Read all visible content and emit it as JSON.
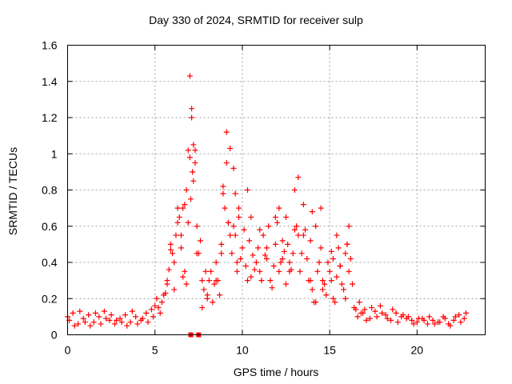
{
  "chart_data": {
    "type": "scatter",
    "title": "Day 330 of 2024, SRMTID for receiver sulp",
    "xlabel": "GPS time / hours",
    "ylabel": "SRMTID / TECUs",
    "xlim": [
      0,
      23.9
    ],
    "ylim": [
      0,
      1.6
    ],
    "xticks": [
      0,
      5,
      10,
      15,
      20
    ],
    "xtick_labels": [
      "0",
      "5",
      "10",
      "15",
      "20"
    ],
    "yticks": [
      0,
      0.2,
      0.4,
      0.6,
      0.8,
      1,
      1.2,
      1.4,
      1.6
    ],
    "ytick_labels": [
      "0",
      "0.2",
      "0.4",
      "0.6",
      "0.8",
      "1",
      "1.2",
      "1.4",
      "1.6"
    ],
    "grid": true,
    "marker": "plus",
    "color": "#ff0000",
    "series": [
      {
        "name": "sulp",
        "x": [
          0.0,
          0.3,
          0.6,
          0.9,
          1.2,
          1.5,
          1.8,
          2.1,
          2.4,
          2.7,
          3.0,
          3.3,
          3.6,
          3.9,
          4.2,
          4.5,
          4.8,
          5.0,
          5.2,
          5.4,
          5.6,
          5.8,
          6.0,
          6.2,
          6.4,
          6.6,
          6.8,
          7.0,
          7.1,
          7.2,
          7.4,
          7.6,
          7.8,
          8.0,
          8.2,
          8.4,
          8.6,
          8.8,
          9.0,
          9.2,
          9.4,
          9.6,
          9.8,
          10.0,
          10.2,
          10.4,
          10.6,
          10.8,
          11.0,
          11.2,
          11.4,
          11.6,
          11.8,
          12.0,
          12.2,
          12.4,
          12.6,
          12.8,
          13.0,
          13.2,
          13.4,
          13.6,
          13.8,
          14.0,
          14.2,
          14.4,
          14.6,
          14.8,
          15.0,
          15.2,
          15.4,
          15.6,
          15.8,
          16.0,
          16.2,
          16.4,
          16.6,
          16.8,
          17.0,
          17.3,
          17.6,
          17.9,
          18.2,
          18.5,
          18.8,
          19.1,
          19.4,
          19.7,
          20.0,
          20.3,
          20.6,
          20.9,
          21.2,
          21.5,
          21.8,
          22.1,
          22.4,
          22.7,
          0.1,
          0.4,
          0.7,
          1.0,
          1.3,
          1.6,
          1.9,
          2.2,
          2.5,
          2.8,
          3.1,
          3.4,
          3.7,
          4.0,
          4.3,
          4.6,
          4.9,
          5.1,
          5.3,
          5.5,
          5.7,
          5.9,
          6.1,
          6.3,
          6.5,
          6.7,
          6.9,
          7.05,
          7.15,
          7.3,
          7.5,
          7.7,
          7.9,
          8.1,
          8.3,
          8.5,
          8.7,
          8.9,
          9.1,
          9.3,
          9.5,
          9.7,
          9.9,
          10.1,
          10.3,
          10.5,
          10.7,
          10.9,
          11.1,
          11.3,
          11.5,
          11.7,
          11.9,
          12.1,
          12.3,
          12.5,
          12.7,
          12.9,
          13.1,
          13.3,
          13.5,
          13.7,
          13.9,
          14.1,
          14.3,
          14.5,
          14.7,
          14.9,
          15.1,
          15.3,
          15.5,
          15.7,
          15.9,
          16.1,
          16.3,
          16.5,
          16.7,
          16.9,
          17.1,
          17.4,
          17.7,
          18.0,
          18.3,
          18.6,
          18.9,
          19.2,
          19.5,
          19.8,
          20.1,
          20.4,
          20.7,
          21.0,
          21.3,
          21.6,
          21.9,
          22.2,
          22.5,
          22.8,
          6.3,
          6.5,
          6.7,
          6.9,
          7.0,
          7.1,
          7.2,
          7.3,
          8.9,
          9.1,
          9.3,
          9.5,
          9.6,
          9.8,
          10.3,
          12.1,
          12.5,
          13.0,
          13.2,
          14.2,
          14.5,
          15.1,
          15.4,
          16.0,
          16.1,
          5.7,
          5.9,
          6.1,
          6.6,
          6.8,
          7.4,
          7.7,
          8.0,
          8.5,
          8.8,
          9.2,
          9.7,
          10.5,
          11.0,
          11.4,
          11.9,
          12.3,
          12.7,
          13.5,
          13.9,
          14.0,
          14.6,
          15.2,
          15.6,
          15.9
        ],
        "y": [
          0.1,
          0.12,
          0.06,
          0.09,
          0.11,
          0.07,
          0.1,
          0.13,
          0.08,
          0.06,
          0.09,
          0.11,
          0.07,
          0.1,
          0.08,
          0.12,
          0.14,
          0.16,
          0.15,
          0.18,
          0.23,
          0.36,
          0.45,
          0.55,
          0.65,
          0.7,
          0.8,
          0.98,
          1.2,
          0.85,
          0.6,
          0.52,
          0.25,
          0.2,
          0.35,
          0.28,
          0.3,
          0.5,
          0.7,
          0.62,
          0.45,
          0.55,
          0.7,
          0.48,
          0.38,
          0.52,
          0.44,
          0.4,
          0.35,
          0.55,
          0.42,
          0.3,
          0.38,
          0.62,
          0.4,
          0.46,
          0.5,
          0.36,
          0.8,
          0.55,
          0.45,
          0.58,
          0.3,
          0.25,
          0.18,
          0.4,
          0.3,
          0.22,
          0.35,
          0.42,
          0.32,
          0.38,
          0.25,
          0.5,
          0.42,
          0.15,
          0.1,
          0.12,
          0.14,
          0.09,
          0.13,
          0.16,
          0.11,
          0.08,
          0.12,
          0.1,
          0.09,
          0.08,
          0.07,
          0.09,
          0.06,
          0.08,
          0.07,
          0.1,
          0.06,
          0.08,
          0.11,
          0.09,
          0.08,
          0.05,
          0.13,
          0.07,
          0.05,
          0.12,
          0.06,
          0.09,
          0.11,
          0.08,
          0.07,
          0.05,
          0.13,
          0.06,
          0.09,
          0.07,
          0.1,
          0.2,
          0.12,
          0.22,
          0.3,
          0.47,
          0.4,
          0.62,
          0.48,
          0.35,
          0.62,
          0.75,
          0.9,
          1.02,
          0.45,
          0.3,
          0.35,
          0.3,
          0.18,
          0.4,
          0.22,
          0.78,
          0.95,
          0.55,
          0.6,
          0.35,
          0.42,
          0.58,
          0.3,
          0.65,
          0.36,
          0.48,
          0.3,
          0.44,
          0.6,
          0.26,
          0.5,
          0.35,
          0.52,
          0.28,
          0.4,
          0.45,
          0.6,
          0.35,
          0.72,
          0.42,
          0.52,
          0.18,
          0.35,
          0.48,
          0.28,
          0.4,
          0.3,
          0.18,
          0.48,
          0.28,
          0.2,
          0.35,
          0.28,
          0.14,
          0.18,
          0.12,
          0.08,
          0.15,
          0.1,
          0.12,
          0.09,
          0.14,
          0.07,
          0.11,
          0.1,
          0.06,
          0.09,
          0.08,
          0.1,
          0.06,
          0.07,
          0.09,
          0.05,
          0.1,
          0.07,
          0.12,
          0.7,
          0.55,
          0.72,
          1.02,
          1.43,
          1.25,
          1.05,
          0.95,
          0.82,
          1.12,
          1.03,
          0.92,
          0.78,
          0.65,
          0.8,
          0.7,
          0.65,
          0.58,
          0.87,
          0.6,
          0.7,
          0.46,
          0.55,
          0.5,
          0.6,
          0.28,
          0.5,
          0.25,
          0.32,
          0.28,
          0.45,
          0.15,
          0.22,
          0.3,
          0.45,
          0.62,
          0.4,
          0.32,
          0.58,
          0.48,
          0.65,
          0.42,
          0.35,
          0.55,
          0.3,
          0.68,
          0.25,
          0.2,
          0.38,
          0.45
        ],
        "special_markers_x": [
          7.05,
          7.5
        ],
        "special_markers_y": [
          0,
          0
        ]
      }
    ]
  }
}
